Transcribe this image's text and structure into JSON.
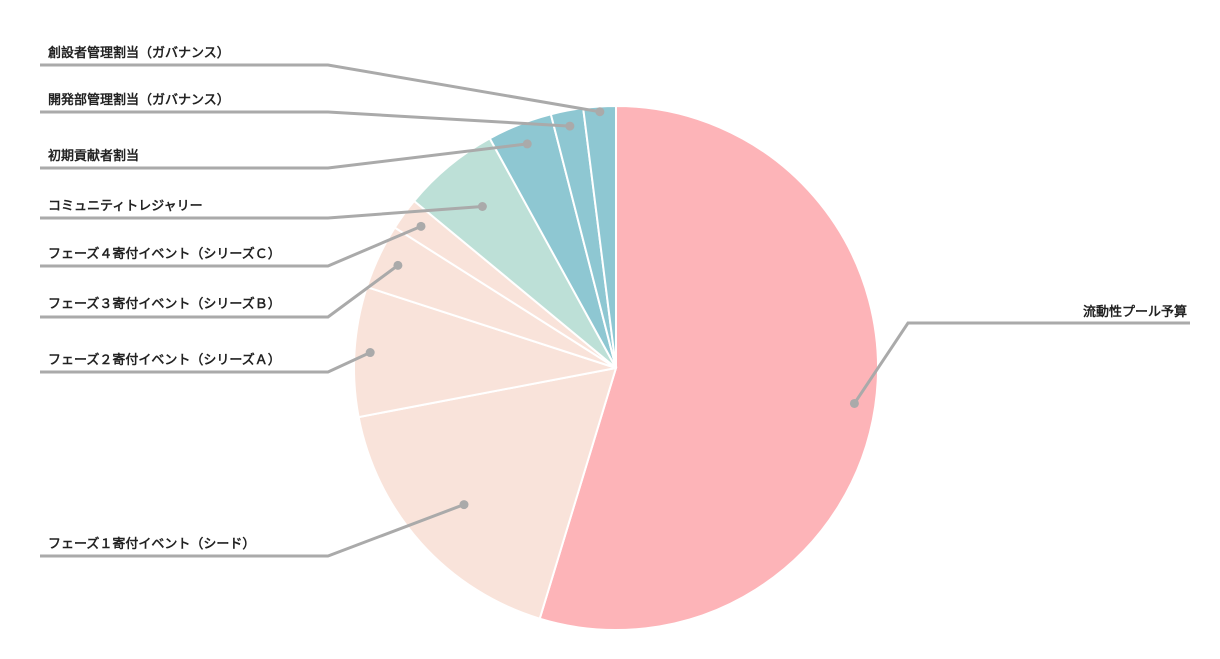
{
  "chart_data": {
    "type": "pie",
    "title": "",
    "start_angle_deg": 0,
    "direction": "clockwise",
    "slices": [
      {
        "label": "流動性プール予算",
        "value": 54.7,
        "color": "#fdb4b8"
      },
      {
        "label": "フェーズ１寄付イベント（シード）",
        "value": 17.3,
        "color": "#f9e3da"
      },
      {
        "label": "フェーズ２寄付イベント（シリーズＡ）",
        "value": 8.0,
        "color": "#f9e3da"
      },
      {
        "label": "フェーズ３寄付イベント（シリーズＢ）",
        "value": 4.0,
        "color": "#f9e3da"
      },
      {
        "label": "フェーズ４寄付イベント（シリーズＣ）",
        "value": 2.0,
        "color": "#f9e3da"
      },
      {
        "label": "コミュニティトレジャリー",
        "value": 6.0,
        "color": "#bde0d7"
      },
      {
        "label": "初期貢献者割当",
        "value": 4.0,
        "color": "#8ec7d2"
      },
      {
        "label": "開発部管理割当（ガバナンス）",
        "value": 2.0,
        "color": "#8ec7d2"
      },
      {
        "label": "創設者管理割当（ガバナンス）",
        "value": 2.0,
        "color": "#8ec7d2"
      }
    ]
  }
}
